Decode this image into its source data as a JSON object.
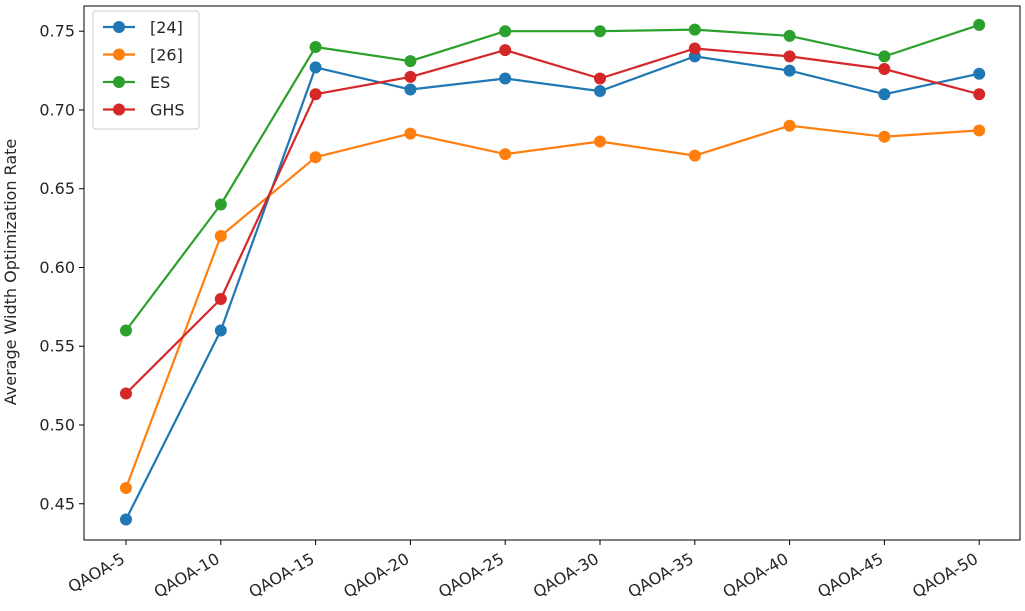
{
  "chart_data": {
    "type": "line",
    "title": "",
    "xlabel": "",
    "ylabel": "Average Width Optimization Rate",
    "categories": [
      "QAOA-5",
      "QAOA-10",
      "QAOA-15",
      "QAOA-20",
      "QAOA-25",
      "QAOA-30",
      "QAOA-35",
      "QAOA-40",
      "QAOA-45",
      "QAOA-50"
    ],
    "ylim": [
      0.427,
      0.766
    ],
    "yticks": [
      0.45,
      0.5,
      0.55,
      0.6,
      0.65,
      0.7,
      0.75
    ],
    "ytick_labels": [
      "0.45",
      "0.50",
      "0.55",
      "0.60",
      "0.65",
      "0.70",
      "0.75"
    ],
    "grid": false,
    "legend_position": "top-left",
    "series": [
      {
        "name": "[24]",
        "color": "#1f77b4",
        "values": [
          0.44,
          0.56,
          0.727,
          0.713,
          0.72,
          0.712,
          0.734,
          0.725,
          0.71,
          0.723
        ]
      },
      {
        "name": "[26]",
        "color": "#ff7f0e",
        "values": [
          0.46,
          0.62,
          0.67,
          0.685,
          0.672,
          0.68,
          0.671,
          0.69,
          0.683,
          0.687
        ]
      },
      {
        "name": "ES",
        "color": "#2ca02c",
        "values": [
          0.56,
          0.64,
          0.74,
          0.731,
          0.75,
          0.75,
          0.751,
          0.747,
          0.734,
          0.754
        ]
      },
      {
        "name": "GHS",
        "color": "#d62728",
        "values": [
          0.52,
          0.58,
          0.71,
          0.721,
          0.738,
          0.72,
          0.739,
          0.734,
          0.726,
          0.71
        ]
      }
    ]
  }
}
